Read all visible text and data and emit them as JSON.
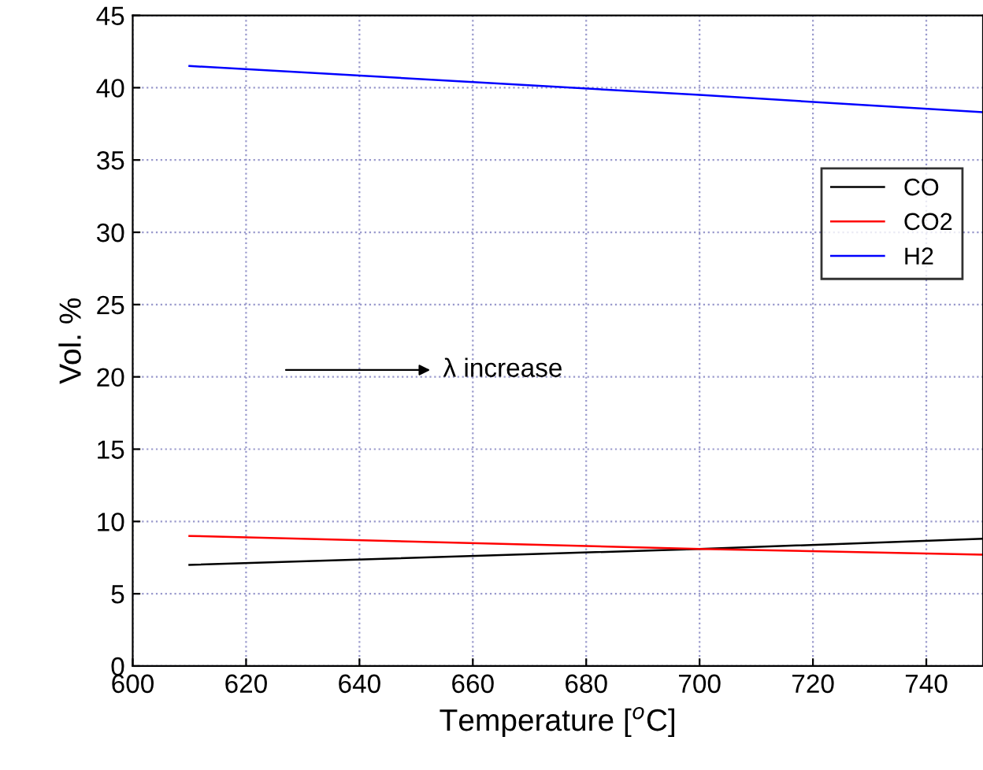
{
  "chart_data": {
    "type": "line",
    "xlabel": "Temperature [$^{o}$C]",
    "ylabel": "Vol. %",
    "x": [
      610,
      700,
      750
    ],
    "series": [
      {
        "name": "CO",
        "color": "#000000",
        "values": [
          7.0,
          8.1,
          8.8
        ]
      },
      {
        "name": "CO2",
        "color": "#ff0000",
        "values": [
          9.0,
          8.1,
          7.7
        ]
      },
      {
        "name": "H2",
        "color": "#0000ff",
        "values": [
          41.5,
          39.5,
          38.3
        ]
      }
    ],
    "xlim": [
      600,
      750
    ],
    "xticks": [
      600,
      620,
      640,
      660,
      680,
      700,
      720,
      740
    ],
    "ylim": [
      0,
      45
    ],
    "yticks": [
      0,
      5,
      10,
      15,
      20,
      25,
      30,
      35,
      40,
      45
    ],
    "annotations": [
      "λ increase"
    ],
    "grid": true,
    "legend": "right",
    "marker": "none",
    "line_style": "solid"
  }
}
